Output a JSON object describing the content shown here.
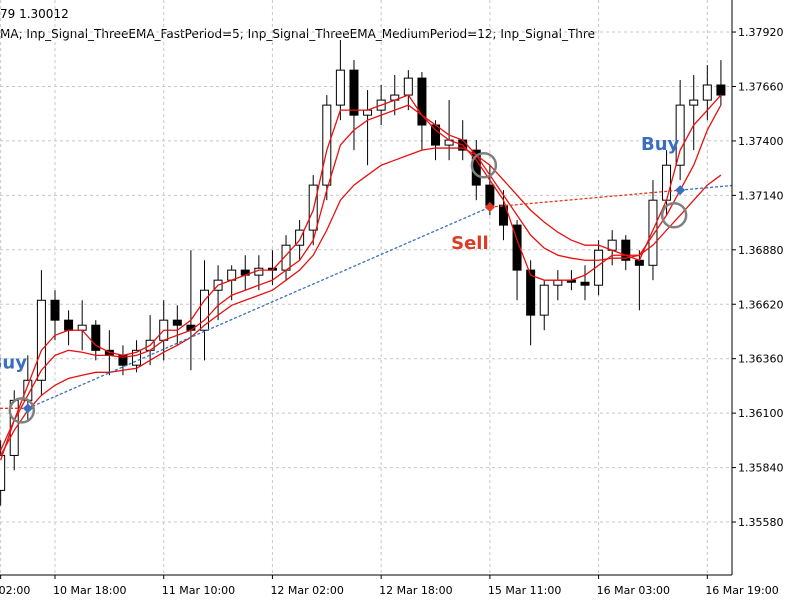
{
  "chart_data": {
    "type": "candlestick",
    "header": [
      "79 1.30012",
      "MA; Inp_Signal_ThreeEMA_FastPeriod=5; Inp_Signal_ThreeEMA_MediumPeriod=12; Inp_Signal_Thre"
    ],
    "categories": [
      "02:00",
      null,
      null,
      null,
      "10 Mar 18:00",
      null,
      null,
      null,
      null,
      null,
      null,
      null,
      "11 Mar 10:00",
      null,
      null,
      null,
      null,
      null,
      null,
      null,
      "12 Mar 02:00",
      null,
      null,
      null,
      null,
      null,
      null,
      null,
      "12 Mar 18:00",
      null,
      null,
      null,
      null,
      null,
      null,
      null,
      "15 Mar 11:00",
      null,
      null,
      null,
      null,
      null,
      null,
      null,
      "16 Mar 03:00",
      null,
      null,
      null,
      null,
      null,
      null,
      null,
      "16 Mar 19:00",
      null
    ],
    "open": [
      1.35731,
      1.35898,
      1.36161,
      1.36257,
      1.36639,
      1.36544,
      1.36496,
      1.3652,
      1.364,
      1.36376,
      1.36329,
      1.364,
      1.36448,
      1.36544,
      1.3652,
      1.36496,
      1.36687,
      1.36735,
      1.36783,
      1.36759,
      1.36792,
      1.36783,
      1.36902,
      1.36974,
      1.37189,
      1.37571,
      1.37738,
      1.37523,
      1.37547,
      1.37595,
      1.37619,
      1.377,
      1.37476,
      1.3738,
      1.37404,
      1.37356,
      1.37189,
      1.37093,
      1.36998,
      1.36783,
      1.36568,
      1.36711,
      1.36735,
      1.36725,
      1.36711,
      1.36878,
      1.36926,
      1.3683,
      1.36806,
      1.37117,
      1.37284,
      1.37571,
      1.37595,
      1.37667
    ],
    "high": [
      1.3597,
      1.36209,
      1.36376,
      1.36783,
      1.36687,
      1.36591,
      1.36639,
      1.36544,
      1.36496,
      1.36424,
      1.36448,
      1.36568,
      1.36639,
      1.36615,
      1.36878,
      1.3683,
      1.36806,
      1.36806,
      1.36854,
      1.36854,
      1.36878,
      1.3695,
      1.37022,
      1.37237,
      1.37619,
      1.37882,
      1.37786,
      1.37643,
      1.37667,
      1.37715,
      1.37738,
      1.37729,
      1.37499,
      1.37595,
      1.37499,
      1.37404,
      1.37284,
      1.37165,
      1.37022,
      1.3683,
      1.36735,
      1.36783,
      1.36783,
      1.36806,
      1.36926,
      1.36974,
      1.3695,
      1.36878,
      1.37213,
      1.37356,
      1.37691,
      1.37715,
      1.37762,
      1.37786
    ],
    "low": [
      1.35659,
      1.35827,
      1.36066,
      1.36185,
      1.36448,
      1.36424,
      1.364,
      1.36352,
      1.36281,
      1.36281,
      1.36295,
      1.36329,
      1.36352,
      1.36424,
      1.36305,
      1.36352,
      1.36544,
      1.36639,
      1.36687,
      1.36687,
      1.36711,
      1.36735,
      1.3683,
      1.36902,
      1.37117,
      1.37499,
      1.37356,
      1.37284,
      1.37476,
      1.37523,
      1.37547,
      1.37356,
      1.37308,
      1.37308,
      1.37308,
      1.37117,
      1.37045,
      1.36926,
      1.36639,
      1.36424,
      1.36496,
      1.36639,
      1.36687,
      1.36639,
      1.36663,
      1.36806,
      1.36783,
      1.36591,
      1.36735,
      1.37045,
      1.37213,
      1.37356,
      1.37499,
      1.37571
    ],
    "close": [
      1.35898,
      1.36161,
      1.36257,
      1.36639,
      1.36544,
      1.36496,
      1.3652,
      1.364,
      1.36376,
      1.36329,
      1.364,
      1.36448,
      1.36544,
      1.3652,
      1.36496,
      1.36687,
      1.36735,
      1.36783,
      1.36759,
      1.36792,
      1.36783,
      1.36902,
      1.36974,
      1.37189,
      1.37571,
      1.37738,
      1.37523,
      1.37547,
      1.37595,
      1.37619,
      1.377,
      1.37476,
      1.3738,
      1.37404,
      1.37356,
      1.37189,
      1.37093,
      1.36998,
      1.36783,
      1.36568,
      1.36711,
      1.36735,
      1.36725,
      1.36711,
      1.36878,
      1.36926,
      1.3683,
      1.36806,
      1.37117,
      1.37284,
      1.37571,
      1.37595,
      1.37667,
      1.37619
    ],
    "lines": [
      {
        "color": "#e81010",
        "values": [
          1.35875,
          1.36066,
          1.36233,
          1.364,
          1.36472,
          1.36496,
          1.36496,
          1.36424,
          1.36391,
          1.36376,
          1.36391,
          1.36424,
          1.36496,
          1.36496,
          1.36544,
          1.36639,
          1.36711,
          1.36735,
          1.36759,
          1.36783,
          1.36783,
          1.36854,
          1.36926,
          1.37069,
          1.37356,
          1.37547,
          1.37547,
          1.37547,
          1.37571,
          1.37595,
          1.37619,
          1.37523,
          1.37452,
          1.37404,
          1.3738,
          1.37308,
          1.37213,
          1.37117,
          1.36926,
          1.36759,
          1.36735,
          1.36735,
          1.36735,
          1.36759,
          1.36806,
          1.36854,
          1.36854,
          1.3683,
          1.36974,
          1.37117,
          1.37356,
          1.37476,
          1.37547,
          1.37619
        ]
      },
      {
        "color": "#e81010",
        "values": [
          1.35922,
          1.36066,
          1.36185,
          1.36305,
          1.36376,
          1.364,
          1.36391,
          1.36376,
          1.36376,
          1.36367,
          1.36376,
          1.364,
          1.36448,
          1.36472,
          1.36496,
          1.36544,
          1.36615,
          1.36663,
          1.36687,
          1.36711,
          1.36735,
          1.36783,
          1.3683,
          1.36926,
          1.37165,
          1.3738,
          1.37452,
          1.37499,
          1.37523,
          1.37547,
          1.37571,
          1.37523,
          1.37476,
          1.37428,
          1.37404,
          1.37332,
          1.37237,
          1.37141,
          1.37045,
          1.3695,
          1.36888,
          1.36854,
          1.3684,
          1.3683,
          1.3683,
          1.3684,
          1.3684,
          1.36854,
          1.3695,
          1.37045,
          1.37165,
          1.37284,
          1.37452,
          1.37571
        ]
      },
      {
        "color": "#e81010",
        "values": [
          1.35898,
          1.36018,
          1.36113,
          1.36185,
          1.36233,
          1.36266,
          1.36281,
          1.36295,
          1.36295,
          1.36305,
          1.36314,
          1.36352,
          1.36391,
          1.36424,
          1.36462,
          1.3652,
          1.36568,
          1.36615,
          1.36639,
          1.36663,
          1.36687,
          1.36735,
          1.36783,
          1.36854,
          1.36974,
          1.37117,
          1.37189,
          1.37237,
          1.37284,
          1.37308,
          1.37332,
          1.37356,
          1.37366,
          1.37366,
          1.37366,
          1.37332,
          1.37284,
          1.37213,
          1.37141,
          1.37069,
          1.37012,
          1.36964,
          1.36926,
          1.36902,
          1.36902,
          1.36878,
          1.36854,
          1.36854,
          1.36902,
          1.36974,
          1.37045,
          1.37117,
          1.37189,
          1.37237
        ]
      }
    ],
    "signals": [
      {
        "label": "Buy",
        "index": 2,
        "price": 1.36123,
        "color": "#3a6fc0"
      },
      {
        "label": "Sell",
        "index": 36,
        "price": 1.37084,
        "color": "#e03a22"
      },
      {
        "label": "Buy",
        "index": 50,
        "price": 1.37165,
        "color": "#3a6fc0"
      }
    ],
    "ylim": [
      1.35327,
      1.38073
    ],
    "yticks": [
      {
        "value": 1.3792,
        "label": "1.37920"
      },
      {
        "value": 1.3766,
        "label": "1.37660"
      },
      {
        "value": 1.374,
        "label": "1.37400"
      },
      {
        "value": 1.3714,
        "label": "1.37140"
      },
      {
        "value": 1.3688,
        "label": "1.36880"
      },
      {
        "value": 1.3662,
        "label": "1.36620"
      },
      {
        "value": 1.3636,
        "label": "1.36360"
      },
      {
        "value": 1.361,
        "label": "1.36100"
      },
      {
        "value": 1.3584,
        "label": "1.35840"
      },
      {
        "value": 1.3558,
        "label": "1.35580"
      }
    ],
    "grid": true,
    "bull_color": "#ffffff",
    "bear_color": "#000000"
  }
}
